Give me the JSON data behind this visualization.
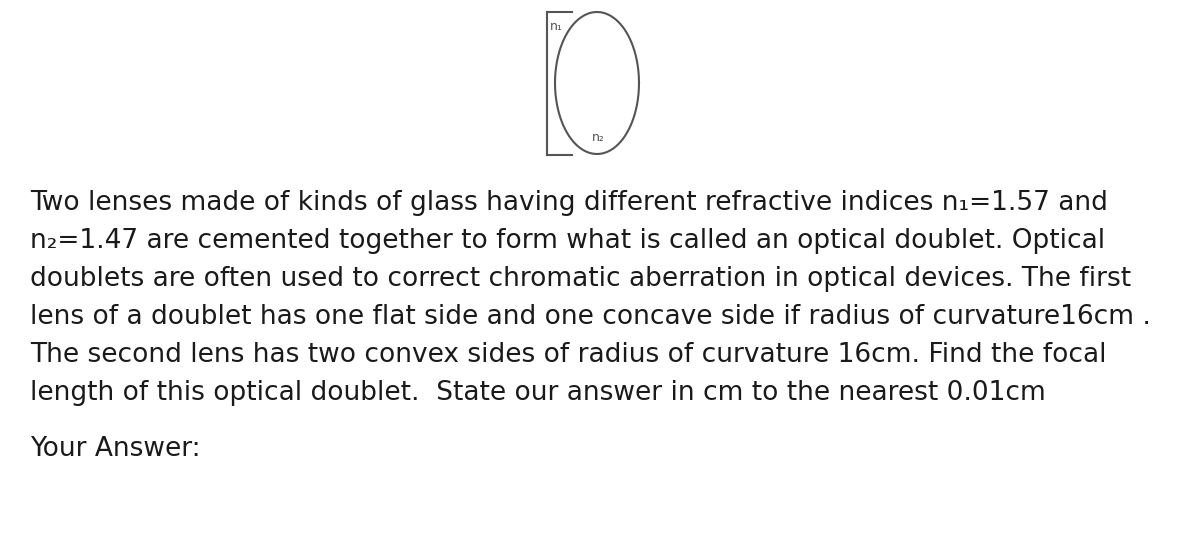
{
  "background_color": "#ffffff",
  "diagram": {
    "n1_label": "n₁",
    "n2_label": "n₂",
    "line_color": "#555555",
    "line_width": 1.5
  },
  "text_lines": [
    "Two lenses made of kinds of glass having different refractive indices n₁=1.57 and",
    "n₂=1.47 are cemented together to form what is called an optical doublet. Optical",
    "doublets are often used to correct chromatic aberration in optical devices. The first",
    "lens of a doublet has one flat side and one concave side if radius of curvature16cm .",
    "The second lens has two convex sides of radius of curvature 16cm. Find the focal",
    "length of this optical doublet.  State our answer in cm to the nearest 0.01cm"
  ],
  "answer_label": "Your Answer:",
  "text_color": "#1a1a1a",
  "text_fontsize": 19.0,
  "answer_fontsize": 19.0
}
